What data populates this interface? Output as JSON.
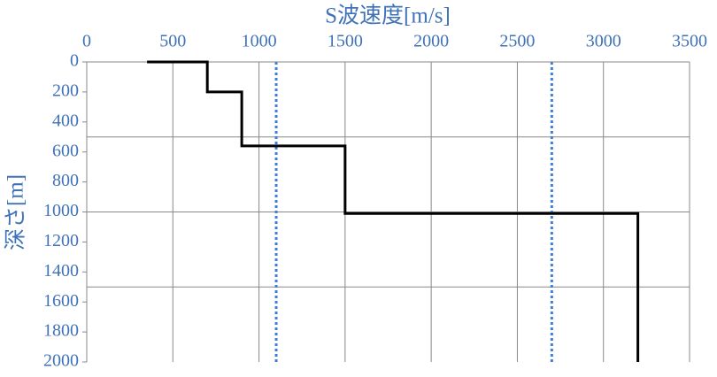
{
  "chart_data": {
    "type": "line",
    "xlabel": "S波速度[m/s]",
    "ylabel": "深さ[m]",
    "xlim": [
      0,
      3500
    ],
    "xticks": [
      0,
      500,
      1000,
      1500,
      2000,
      2500,
      3000,
      3500
    ],
    "ylim": [
      0,
      2000
    ],
    "y_inverted": true,
    "yticks": [
      0,
      200,
      400,
      600,
      800,
      1000,
      1200,
      1400,
      1600,
      1800,
      2000
    ],
    "ygrid": [
      500,
      1000,
      1500
    ],
    "series": [
      {
        "color": "#000000",
        "x": [
          350,
          700,
          700,
          900,
          900,
          1500,
          1500,
          3200,
          3200
        ],
        "values": [
          0,
          0,
          200,
          200,
          560,
          560,
          1010,
          1010,
          2000
        ]
      }
    ],
    "vlines": {
      "color": "#3f7fd8",
      "values": [
        1100,
        2700
      ]
    }
  }
}
